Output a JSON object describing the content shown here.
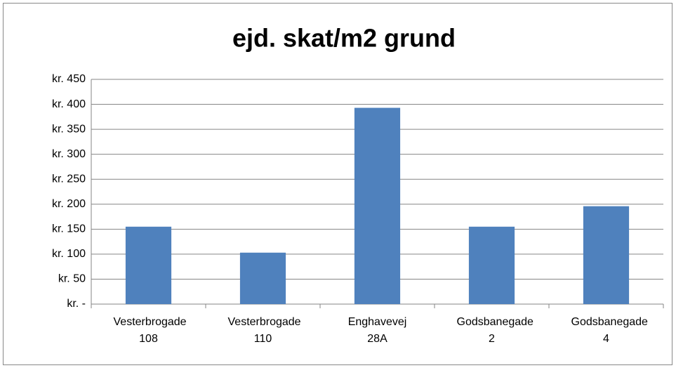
{
  "chart_data": {
    "type": "bar",
    "title": "ejd. skat/m2  grund",
    "categories": [
      "Vesterbrogade 108",
      "Vesterbrogade 110",
      "Enghavevej 28A",
      "Godsbanegade 2",
      "Godsbanegade 4"
    ],
    "values": [
      155,
      103,
      393,
      155,
      196
    ],
    "color": "#4f81bd",
    "ylim": [
      0,
      450
    ],
    "yticks": [
      {
        "value": 0,
        "label": "kr. -"
      },
      {
        "value": 50,
        "label": "kr. 50"
      },
      {
        "value": 100,
        "label": "kr. 100"
      },
      {
        "value": 150,
        "label": "kr. 150"
      },
      {
        "value": 200,
        "label": "kr. 200"
      },
      {
        "value": 250,
        "label": "kr. 250"
      },
      {
        "value": 300,
        "label": "kr. 300"
      },
      {
        "value": 350,
        "label": "kr. 350"
      },
      {
        "value": 400,
        "label": "kr. 400"
      },
      {
        "value": 450,
        "label": "kr. 450"
      }
    ],
    "grid": true
  }
}
